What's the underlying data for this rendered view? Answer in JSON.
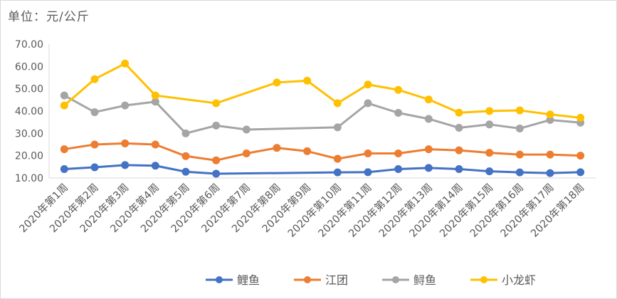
{
  "chart_data": {
    "type": "line",
    "unit_label": "单位：元/公斤",
    "categories": [
      "2020年第1周",
      "2020年第2周",
      "2020年第3周",
      "2020年第4周",
      "2020年第5周",
      "2020年第6周",
      "2020年第7周",
      "2020年第8周",
      "2020年第9周",
      "2020年第10周",
      "2020年第11周",
      "2020年第12周",
      "2020年第13周",
      "2020年第14周",
      "2020年第15周",
      "2020年第16周",
      "2020年第17周",
      "2020年第18周"
    ],
    "yticks": [
      "10.00",
      "20.00",
      "30.00",
      "40.00",
      "50.00",
      "60.00",
      "70.00"
    ],
    "ylim": [
      10,
      70
    ],
    "grid": false,
    "legend_position": "bottom",
    "series": [
      {
        "name": "鲤鱼",
        "color": "#4472C4",
        "values": [
          14.0,
          14.8,
          15.8,
          15.5,
          12.8,
          11.9,
          null,
          null,
          null,
          12.5,
          12.6,
          14.0,
          14.5,
          14.0,
          13.0,
          12.5,
          12.2,
          12.6
        ]
      },
      {
        "name": "江团",
        "color": "#ED7D31",
        "values": [
          22.9,
          25.0,
          25.5,
          25.0,
          19.8,
          17.9,
          21.0,
          23.5,
          22.0,
          18.6,
          21.0,
          21.0,
          22.9,
          22.4,
          21.3,
          20.5,
          20.5,
          20.0
        ]
      },
      {
        "name": "鲟鱼",
        "color": "#A5A5A5",
        "values": [
          47.0,
          39.5,
          42.5,
          44.2,
          30.0,
          33.5,
          31.7,
          null,
          null,
          32.7,
          43.5,
          39.2,
          36.5,
          32.5,
          34.0,
          32.2,
          36.0,
          34.8
        ]
      },
      {
        "name": "小龙虾",
        "color": "#FFC000",
        "values": [
          42.5,
          54.3,
          61.3,
          47.0,
          null,
          43.5,
          null,
          52.8,
          53.6,
          43.5,
          51.9,
          49.5,
          45.2,
          39.3,
          40.0,
          40.3,
          38.5,
          37.0
        ]
      }
    ]
  }
}
